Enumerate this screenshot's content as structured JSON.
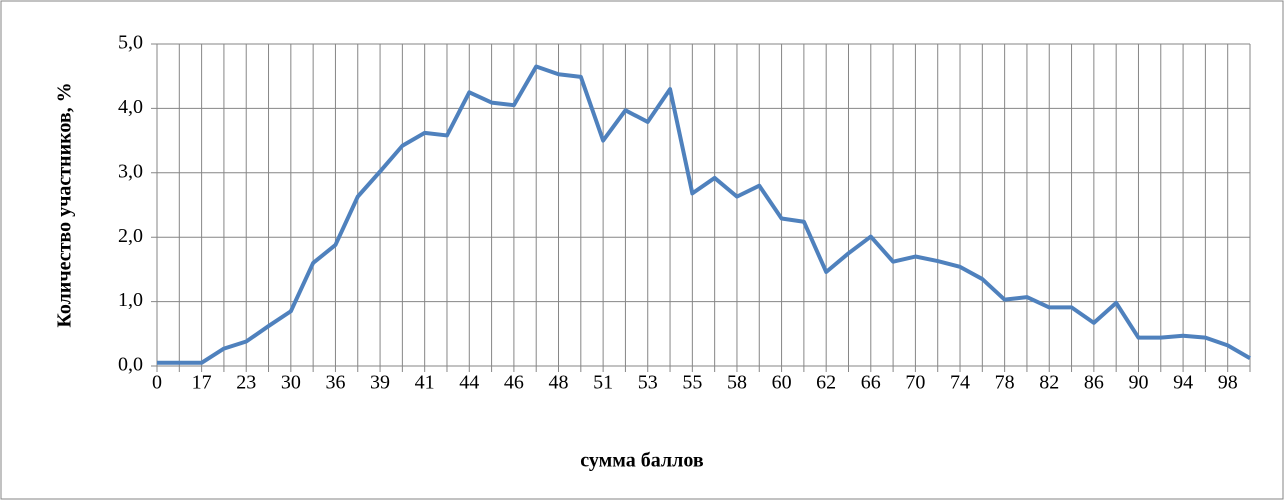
{
  "chart_data": {
    "type": "line",
    "xlabel": "сумма баллов",
    "ylabel": "Количество участников, %",
    "categories": [
      "0",
      null,
      "17",
      null,
      "23",
      null,
      "30",
      null,
      "36",
      null,
      "39",
      null,
      "41",
      null,
      "44",
      null,
      "46",
      null,
      "48",
      null,
      "51",
      null,
      "53",
      null,
      "55",
      null,
      "58",
      null,
      "60",
      null,
      "62",
      null,
      "66",
      null,
      "70",
      null,
      "74",
      null,
      "78",
      null,
      "82",
      null,
      "86",
      null,
      "90",
      null,
      "94",
      null,
      "98",
      null
    ],
    "series": [
      {
        "name": "Количество участников",
        "color": "#4f81bd",
        "values": [
          0.05,
          0.05,
          0.05,
          0.27,
          0.38,
          0.62,
          0.85,
          1.6,
          1.88,
          2.63,
          3.02,
          3.42,
          3.62,
          3.58,
          4.25,
          4.09,
          4.05,
          4.65,
          4.53,
          4.49,
          3.5,
          3.97,
          3.79,
          4.3,
          2.68,
          2.92,
          2.63,
          2.8,
          2.29,
          2.24,
          1.46,
          1.75,
          2.01,
          1.62,
          1.7,
          1.63,
          1.54,
          1.35,
          1.03,
          1.07,
          0.91,
          0.91,
          0.67,
          0.98,
          0.44,
          0.44,
          0.47,
          0.44,
          0.32,
          0.12
        ]
      }
    ],
    "ylim": [
      0,
      5
    ],
    "yticks": [
      {
        "value": 0,
        "label": "0,0"
      },
      {
        "value": 1,
        "label": "1,0"
      },
      {
        "value": 2,
        "label": "2,0"
      },
      {
        "value": 3,
        "label": "3,0"
      },
      {
        "value": 4,
        "label": "4,0"
      },
      {
        "value": 5,
        "label": "5,0"
      }
    ],
    "grid": true
  }
}
